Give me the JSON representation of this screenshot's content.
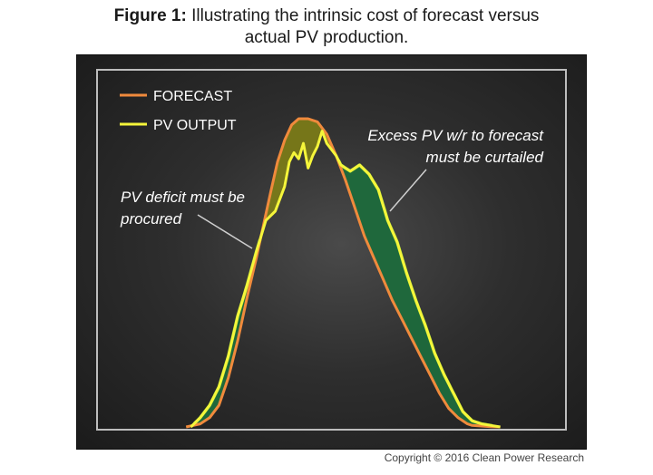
{
  "caption": {
    "label": "Figure 1:",
    "line1": "Illustrating the intrinsic cost of forecast versus",
    "line2": "actual PV production."
  },
  "copyright": "Copyright © 2016 Clean Power Research",
  "colors": {
    "forecast": "#f08a3c",
    "pv_output": "#f5f53a",
    "deficit_fill": "#7a7a18",
    "excess_fill": "#1d6a3c",
    "excess_edge": "#8ad43a",
    "frame": "#bdbdbd",
    "text": "#ffffff",
    "pointer": "#cfcfcf"
  },
  "chart_data": {
    "type": "area",
    "xlim": [
      0,
      100
    ],
    "ylim": [
      0,
      100
    ],
    "grid": false,
    "legend_position": "top-left",
    "series": [
      {
        "name": "FORECAST",
        "x": [
          0,
          19,
          22,
          24,
          26,
          28,
          30,
          32,
          34,
          35,
          37,
          38.5,
          40,
          41.5,
          43,
          45,
          47,
          49,
          51,
          53,
          55,
          57,
          59,
          61,
          63,
          65,
          67,
          69,
          71,
          73,
          75,
          77,
          79,
          80,
          82,
          84,
          86,
          100
        ],
        "y": [
          0,
          0,
          1,
          3,
          7,
          16,
          28,
          42,
          55,
          62,
          76,
          86,
          93,
          98,
          100,
          100,
          99,
          95,
          88,
          80,
          71,
          62,
          55,
          48,
          41,
          35,
          29,
          23,
          17,
          11,
          6,
          3,
          1,
          0.5,
          0.3,
          0.1,
          0,
          0
        ]
      },
      {
        "name": "PV OUTPUT",
        "x": [
          0,
          20,
          22,
          24,
          26,
          28,
          30,
          32,
          34,
          36,
          38,
          40,
          41,
          42,
          43,
          44,
          45,
          46,
          47,
          48,
          49,
          50,
          51,
          52,
          54,
          56,
          58,
          60,
          62,
          64,
          66,
          68,
          70,
          72,
          74,
          76,
          78,
          80,
          82,
          84,
          86,
          100
        ],
        "y": [
          0,
          0,
          3,
          7,
          13,
          23,
          36,
          46,
          57,
          67,
          70,
          78,
          86,
          89,
          87,
          92,
          84,
          88,
          91,
          96,
          92,
          90,
          88,
          85,
          83,
          85,
          82,
          77,
          67,
          60,
          50,
          41,
          33,
          24,
          17,
          11,
          5,
          2,
          1,
          0.5,
          0,
          0
        ]
      }
    ],
    "annotations": [
      "PV deficit must be procured",
      "Excess PV w/r to forecast must be curtailed"
    ]
  },
  "annotation_lines": {
    "deficit": [
      "PV deficit must be",
      "procured"
    ],
    "excess": [
      "Excess PV w/r to forecast",
      "must be curtailed"
    ]
  }
}
